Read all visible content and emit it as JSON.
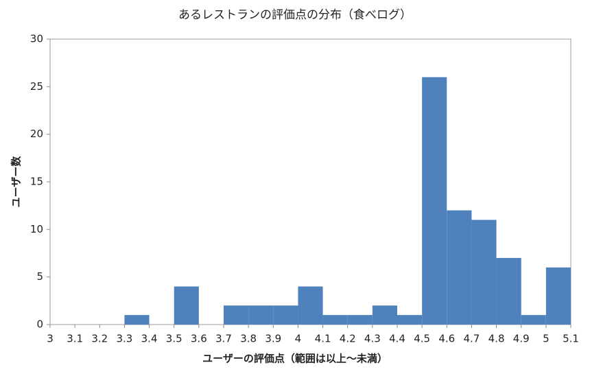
{
  "chart_data": {
    "type": "histogram",
    "title": "あるレストランの評価点の分布（食べログ）",
    "xlabel": "ユーザーの評価点（範囲は以上～未満）",
    "ylabel": "ユーザー数",
    "bins": [
      3,
      3.1,
      3.2,
      3.3,
      3.4,
      3.5,
      3.6,
      3.7,
      3.8,
      3.9,
      4,
      4.1,
      4.2,
      4.3,
      4.4,
      4.5,
      4.6,
      4.7,
      4.8,
      4.9,
      5,
      5.1
    ],
    "values": [
      0,
      0,
      0,
      1,
      0,
      4,
      0,
      2,
      2,
      2,
      4,
      1,
      1,
      2,
      1,
      26,
      12,
      11,
      7,
      1,
      6
    ],
    "color": "#4f81bd",
    "xlim": [
      3,
      5.1
    ],
    "xticks": [
      3,
      3.1,
      3.2,
      3.3,
      3.4,
      3.5,
      3.6,
      3.7,
      3.8,
      3.9,
      4,
      4.1,
      4.2,
      4.3,
      4.4,
      4.5,
      4.6,
      4.7,
      4.8,
      4.9,
      5,
      5.1
    ],
    "ylim": [
      0,
      30
    ],
    "yticks": [
      0,
      5,
      10,
      15,
      20,
      25,
      30
    ]
  }
}
